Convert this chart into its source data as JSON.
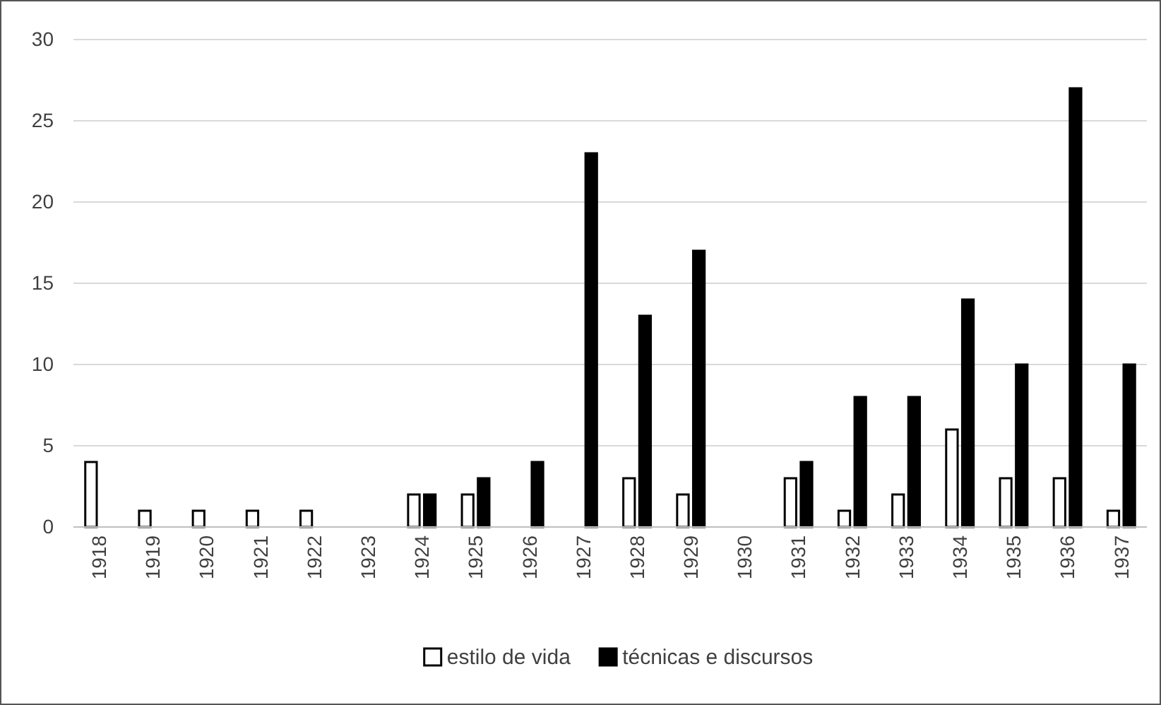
{
  "chart_data": {
    "type": "bar",
    "categories": [
      "1918",
      "1919",
      "1920",
      "1921",
      "1922",
      "1923",
      "1924",
      "1925",
      "1926",
      "1927",
      "1928",
      "1929",
      "1930",
      "1931",
      "1932",
      "1933",
      "1934",
      "1935",
      "1936",
      "1937"
    ],
    "series": [
      {
        "name": "estilo de vida",
        "color": "#ffffff",
        "values": [
          4,
          1,
          1,
          1,
          1,
          0,
          2,
          2,
          0,
          0,
          3,
          2,
          0,
          3,
          1,
          2,
          6,
          3,
          3,
          1
        ]
      },
      {
        "name": "técnicas e discursos",
        "color": "#000000",
        "values": [
          0,
          0,
          0,
          0,
          0,
          0,
          2,
          3,
          4,
          23,
          13,
          17,
          0,
          4,
          8,
          8,
          14,
          10,
          27,
          10
        ]
      }
    ],
    "ylim": [
      0,
      30
    ],
    "yticks": [
      0,
      5,
      10,
      15,
      20,
      25,
      30
    ],
    "grid": "y",
    "legend": "bottom"
  }
}
